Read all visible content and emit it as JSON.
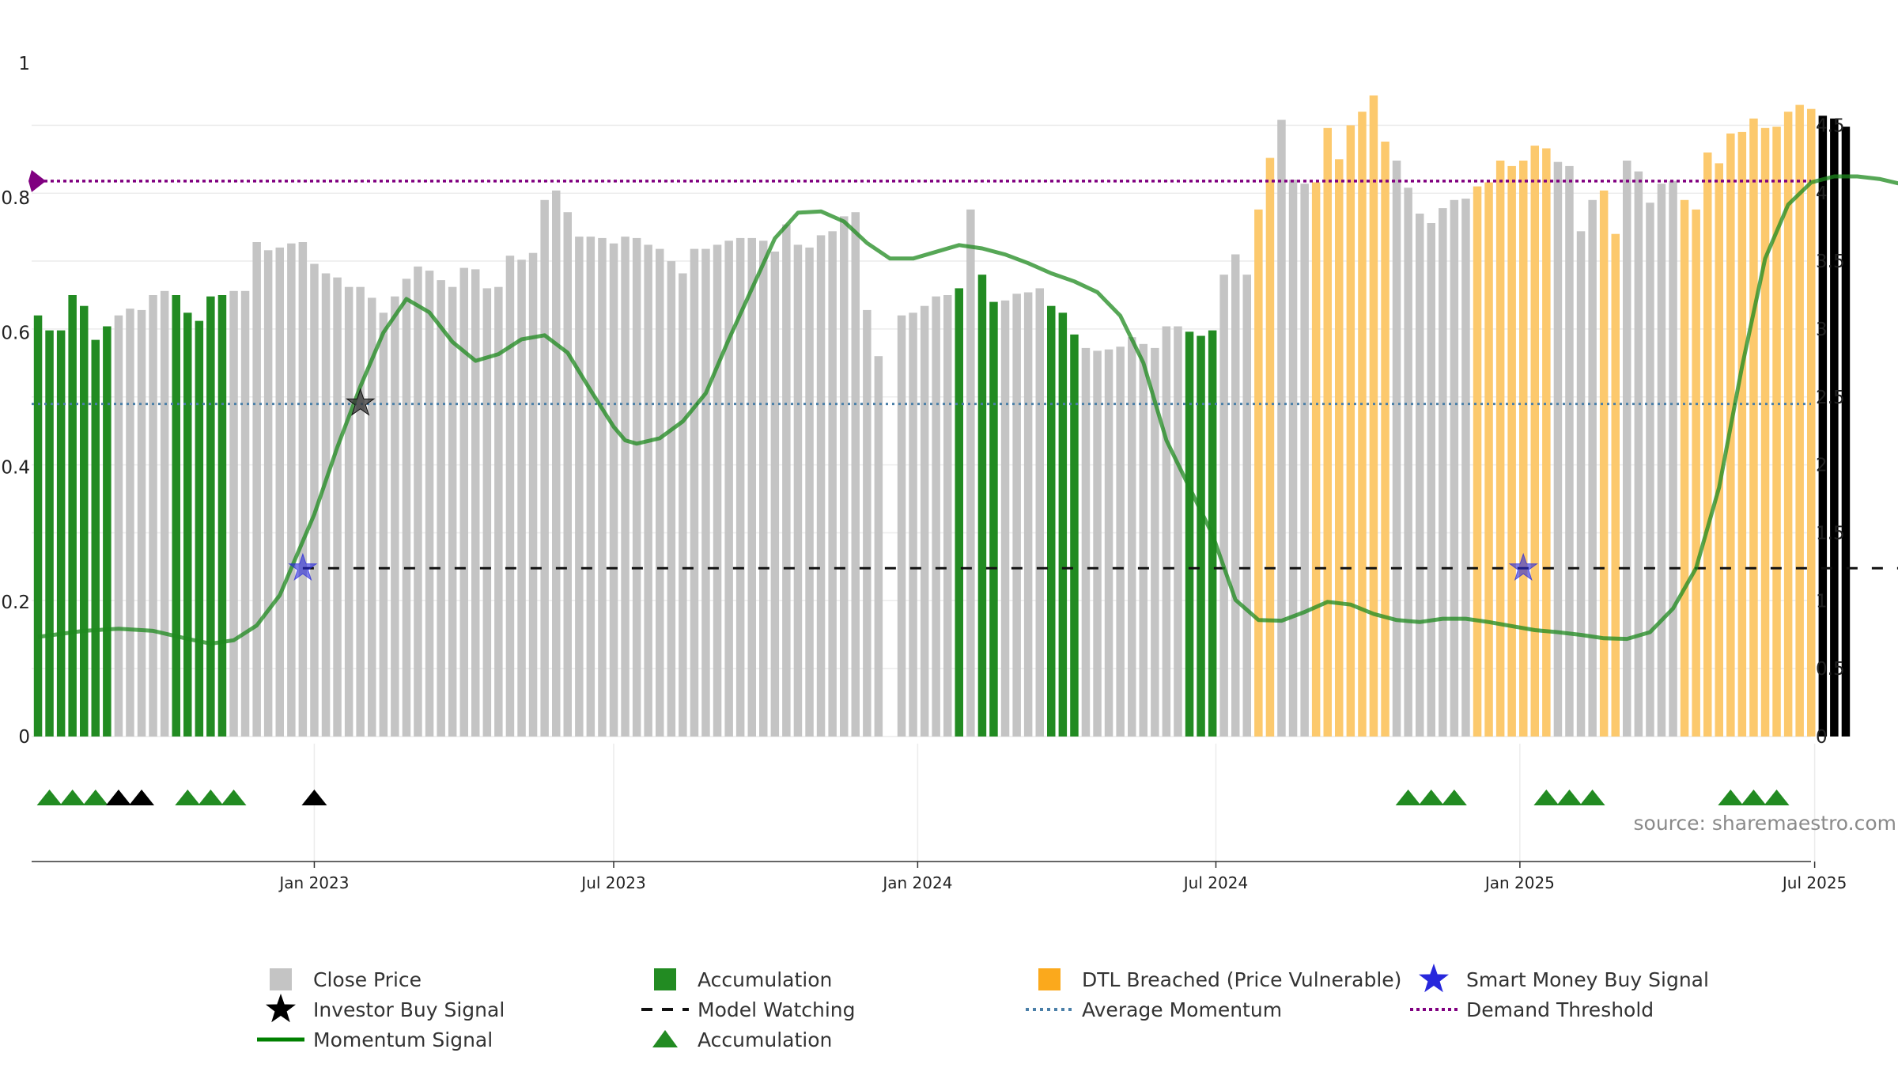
{
  "chart_data": {
    "type": "bar",
    "source": "source: sharemaestro.com",
    "left_axis": {
      "ticks": [
        "0",
        "0.2",
        "0.4",
        "0.6",
        "0.8",
        "1"
      ],
      "ylim": [
        0,
        1
      ]
    },
    "right_axis": {
      "ticks": [
        "0",
        "0.5",
        "1",
        "1.5",
        "2",
        "2.5",
        "3",
        "3.5",
        "4",
        "4.5"
      ],
      "ylim": [
        0,
        5
      ]
    },
    "x_ticks": [
      {
        "label": "Jan 2023",
        "week": 24
      },
      {
        "label": "Jul 2023",
        "week": 50
      },
      {
        "label": "Jan 2024",
        "week": 76.4
      },
      {
        "label": "Jul 2024",
        "week": 102.3
      },
      {
        "label": "Jan 2025",
        "week": 128.7
      },
      {
        "label": "Jul 2025",
        "week": 154.3
      }
    ],
    "colors": {
      "close": "#c4c4c4",
      "accumulation": "#228b22",
      "dtl": "#fcc96d",
      "momentum": "#1e8a1e",
      "avg_momentum": "#4a7fa8",
      "demand": "#800080",
      "smart_money": "#2828dc",
      "investor": "#000000"
    },
    "bar_values": [
      3.1,
      2.99,
      2.99,
      3.25,
      3.17,
      2.92,
      3.02,
      3.1,
      3.15,
      3.14,
      3.25,
      3.28,
      3.25,
      3.12,
      3.06,
      3.24,
      3.25,
      3.28,
      3.28,
      3.64,
      3.58,
      3.6,
      3.63,
      3.64,
      3.48,
      3.41,
      3.38,
      3.31,
      3.31,
      3.23,
      3.12,
      3.24,
      3.37,
      3.46,
      3.43,
      3.36,
      3.31,
      3.45,
      3.44,
      3.3,
      3.31,
      3.54,
      3.51,
      3.56,
      3.95,
      4.02,
      3.86,
      3.68,
      3.68,
      3.67,
      3.63,
      3.68,
      3.67,
      3.62,
      3.59,
      3.5,
      3.41,
      3.59,
      3.59,
      3.62,
      3.65,
      3.67,
      3.67,
      3.65,
      3.57,
      3.77,
      3.62,
      3.6,
      3.69,
      3.72,
      3.83,
      3.86,
      3.14,
      2.8,
      0,
      3.1,
      3.12,
      3.17,
      3.24,
      3.25,
      3.3,
      3.88,
      3.4,
      3.2,
      3.21,
      3.26,
      3.27,
      3.3,
      3.17,
      3.12,
      2.96,
      2.86,
      2.84,
      2.85,
      2.87,
      2.94,
      2.89,
      2.86,
      3.02,
      3.02,
      2.98,
      2.95,
      2.99,
      3.4,
      3.55,
      3.4,
      3.88,
      4.26,
      4.54,
      4.1,
      4.07,
      4.08,
      4.48,
      4.25,
      4.5,
      4.6,
      4.72,
      4.38,
      4.24,
      4.04,
      3.85,
      3.78,
      3.89,
      3.95,
      3.96,
      4.05,
      4.08,
      4.24,
      4.2,
      4.24,
      4.35,
      4.33,
      4.23,
      4.2,
      3.72,
      3.95,
      4.02,
      3.7,
      4.24,
      4.16,
      3.93,
      4.07,
      4.09,
      3.95,
      3.88,
      4.3,
      4.22,
      4.44,
      4.45,
      4.55,
      4.48,
      4.49,
      4.6,
      4.65,
      4.62,
      4.57,
      4.55,
      4.49
    ],
    "bar_categories": [
      "acc",
      "acc",
      "acc",
      "acc",
      "acc",
      "acc",
      "acc",
      "close",
      "close",
      "close",
      "close",
      "close",
      "acc",
      "acc",
      "acc",
      "acc",
      "acc",
      "close",
      "close",
      "close",
      "close",
      "close",
      "close",
      "close",
      "close",
      "close",
      "close",
      "close",
      "close",
      "close",
      "close",
      "close",
      "close",
      "close",
      "close",
      "close",
      "close",
      "close",
      "close",
      "close",
      "close",
      "close",
      "close",
      "close",
      "close",
      "close",
      "close",
      "close",
      "close",
      "close",
      "close",
      "close",
      "close",
      "close",
      "close",
      "close",
      "close",
      "close",
      "close",
      "close",
      "close",
      "close",
      "close",
      "close",
      "close",
      "close",
      "close",
      "close",
      "close",
      "close",
      "close",
      "close",
      "close",
      "close",
      "close",
      "close",
      "close",
      "close",
      "close",
      "close",
      "acc",
      "close",
      "acc",
      "acc",
      "close",
      "close",
      "close",
      "close",
      "acc",
      "acc",
      "acc",
      "close",
      "close",
      "close",
      "close",
      "close",
      "close",
      "close",
      "close",
      "close",
      "acc",
      "acc",
      "acc",
      "close",
      "close",
      "close",
      "dtl",
      "dtl",
      "close",
      "close",
      "close",
      "dtl",
      "dtl",
      "dtl",
      "dtl",
      "dtl",
      "dtl",
      "dtl",
      "close",
      "close",
      "close",
      "close",
      "close",
      "close",
      "close",
      "dtl",
      "dtl",
      "dtl",
      "dtl",
      "dtl",
      "dtl",
      "dtl",
      "close",
      "close",
      "close",
      "close",
      "dtl",
      "dtl",
      "close",
      "close",
      "close",
      "close",
      "close",
      "dtl",
      "dtl",
      "dtl",
      "dtl",
      "dtl",
      "dtl",
      "dtl",
      "dtl",
      "dtl",
      "dtl",
      "dtl",
      "dtl"
    ],
    "momentum": [
      [
        0,
        0.148
      ],
      [
        4,
        0.157
      ],
      [
        7,
        0.16
      ],
      [
        10,
        0.157
      ],
      [
        13,
        0.145
      ],
      [
        15,
        0.138
      ],
      [
        17,
        0.143
      ],
      [
        19,
        0.165
      ],
      [
        21,
        0.21
      ],
      [
        24,
        0.33
      ],
      [
        26,
        0.43
      ],
      [
        28,
        0.52
      ],
      [
        30,
        0.6
      ],
      [
        32,
        0.65
      ],
      [
        34,
        0.63
      ],
      [
        36,
        0.586
      ],
      [
        38,
        0.558
      ],
      [
        40,
        0.568
      ],
      [
        42,
        0.59
      ],
      [
        44,
        0.596
      ],
      [
        46,
        0.57
      ],
      [
        48,
        0.514
      ],
      [
        50,
        0.46
      ],
      [
        51,
        0.44
      ],
      [
        52,
        0.435
      ],
      [
        54,
        0.443
      ],
      [
        56,
        0.468
      ],
      [
        58,
        0.51
      ],
      [
        60,
        0.59
      ],
      [
        62,
        0.665
      ],
      [
        64,
        0.74
      ],
      [
        66,
        0.778
      ],
      [
        68,
        0.78
      ],
      [
        70,
        0.765
      ],
      [
        72,
        0.733
      ],
      [
        74,
        0.71
      ],
      [
        76,
        0.71
      ],
      [
        78,
        0.72
      ],
      [
        80,
        0.73
      ],
      [
        82,
        0.725
      ],
      [
        84,
        0.716
      ],
      [
        86,
        0.703
      ],
      [
        88,
        0.688
      ],
      [
        90,
        0.676
      ],
      [
        92,
        0.66
      ],
      [
        94,
        0.625
      ],
      [
        96,
        0.555
      ],
      [
        98,
        0.44
      ],
      [
        100,
        0.37
      ],
      [
        102,
        0.3
      ],
      [
        104,
        0.203
      ],
      [
        106,
        0.173
      ],
      [
        108,
        0.172
      ],
      [
        110,
        0.185
      ],
      [
        112,
        0.2
      ],
      [
        114,
        0.196
      ],
      [
        116,
        0.182
      ],
      [
        118,
        0.173
      ],
      [
        120,
        0.17
      ],
      [
        122,
        0.175
      ],
      [
        124,
        0.175
      ],
      [
        126,
        0.17
      ],
      [
        128,
        0.164
      ],
      [
        130,
        0.158
      ],
      [
        132,
        0.155
      ],
      [
        134,
        0.151
      ],
      [
        136,
        0.146
      ],
      [
        138,
        0.145
      ],
      [
        140,
        0.155
      ],
      [
        142,
        0.19
      ],
      [
        144,
        0.25
      ],
      [
        146,
        0.37
      ],
      [
        148,
        0.55
      ],
      [
        150,
        0.71
      ],
      [
        152,
        0.79
      ],
      [
        154,
        0.823
      ],
      [
        156,
        0.832
      ],
      [
        158,
        0.832
      ],
      [
        160,
        0.828
      ],
      [
        162,
        0.82
      ],
      [
        164,
        0.808
      ],
      [
        166,
        0.792
      ],
      [
        168,
        0.776
      ],
      [
        170,
        0.768
      ],
      [
        172,
        0.77
      ],
      [
        174,
        0.775
      ],
      [
        176,
        0.78
      ],
      [
        178,
        0.777
      ],
      [
        180,
        0.765
      ],
      [
        182,
        0.72
      ],
      [
        184,
        0.64
      ],
      [
        186,
        0.54
      ],
      [
        188,
        0.44
      ],
      [
        190,
        0.39
      ],
      [
        192,
        0.37
      ],
      [
        194,
        0.365
      ],
      [
        196,
        0.375
      ],
      [
        198,
        0.41
      ],
      [
        200,
        0.5
      ],
      [
        202,
        0.62
      ],
      [
        204,
        0.7
      ],
      [
        206,
        0.76
      ],
      [
        208,
        0.78
      ],
      [
        209,
        0.728
      ],
      [
        210,
        0.745
      ],
      [
        211,
        0.67
      ],
      [
        213,
        0.675
      ]
    ],
    "avg_momentum": 0.494,
    "demand_threshold": 0.825,
    "model_watching_level": 0.25,
    "model_watching_range": [
      23,
      213
    ],
    "smart_money_signals": [
      [
        23,
        0.25
      ],
      [
        129,
        0.25
      ]
    ],
    "investor_buy_signals": [
      [
        28,
        0.495
      ]
    ],
    "accumulation_markers": [
      1,
      3,
      5,
      13,
      15,
      17,
      119,
      121,
      123,
      131,
      133,
      135,
      147,
      149,
      151
    ],
    "investor_markers": [
      7,
      9,
      24
    ],
    "legend": [
      {
        "label": "Close Price",
        "symbol": "gray-square"
      },
      {
        "label": "Accumulation",
        "symbol": "green-square"
      },
      {
        "label": "DTL Breached (Price Vulnerable)",
        "symbol": "orange-square"
      },
      {
        "label": "Smart Money Buy Signal",
        "symbol": "blue-star"
      },
      {
        "label": "Investor Buy Signal",
        "symbol": "black-star"
      },
      {
        "label": "Model Watching",
        "symbol": "black-dash"
      },
      {
        "label": "Average Momentum",
        "symbol": "blue-dotted"
      },
      {
        "label": "Demand Threshold",
        "symbol": "purple-dotted"
      },
      {
        "label": "Momentum Signal",
        "symbol": "green-line"
      },
      {
        "label": "Accumulation",
        "symbol": "green-triangle"
      }
    ]
  }
}
